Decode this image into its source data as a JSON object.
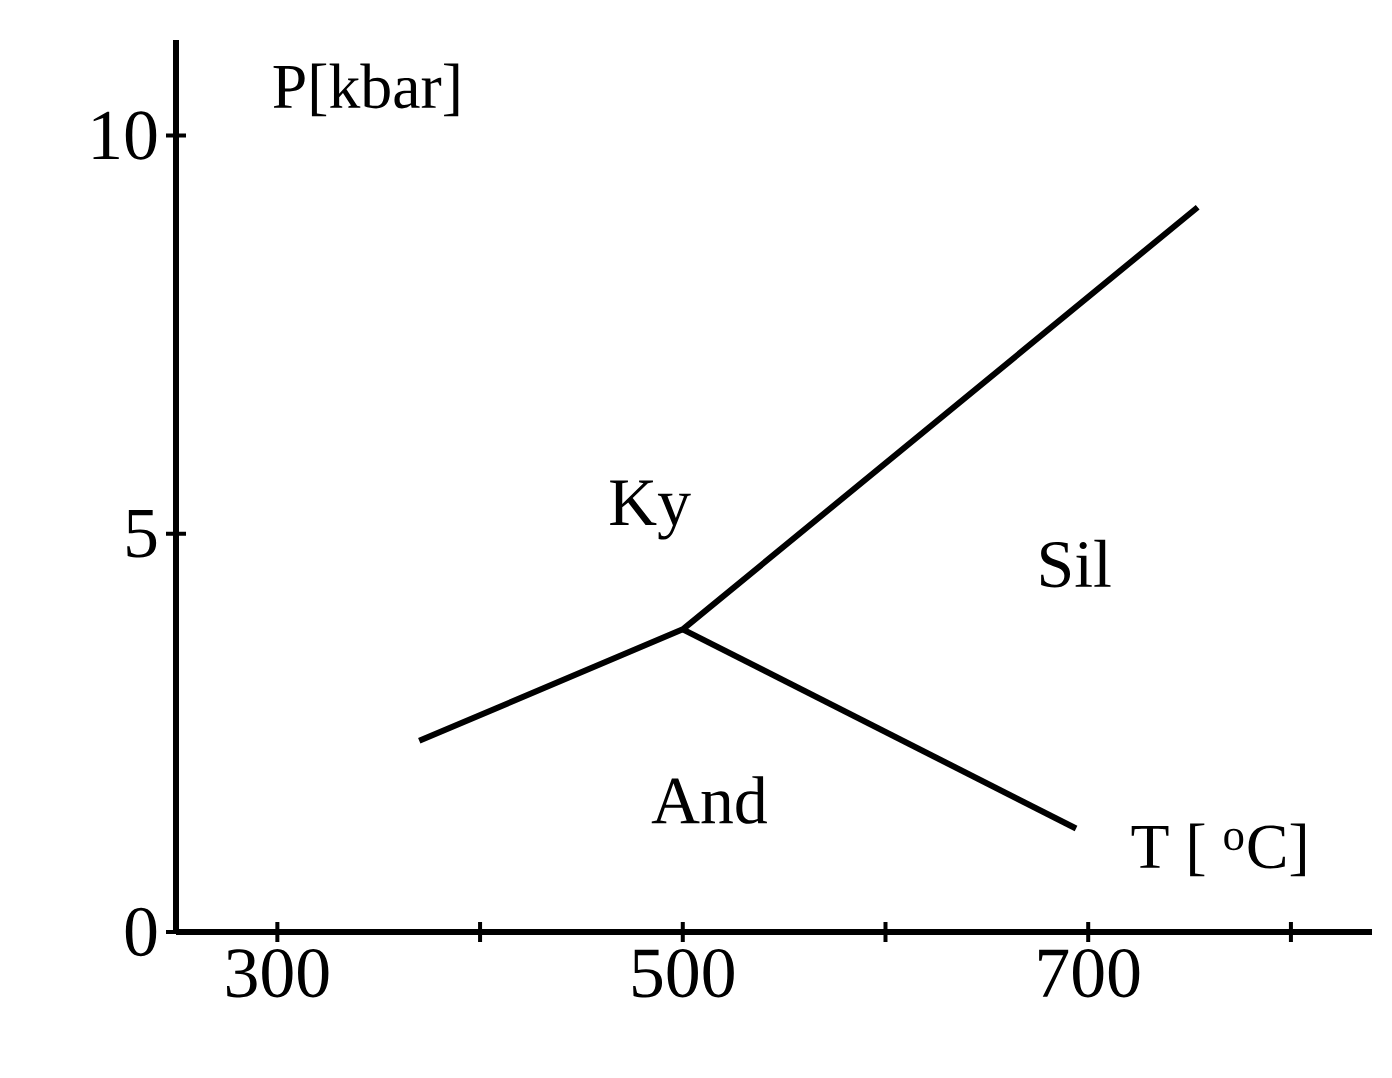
{
  "chart_data": {
    "type": "line",
    "xlabel": "T [ $^{o}$C]",
    "ylabel": "P[kbar]",
    "series": [
      {
        "color": "#000000",
        "x": [
          370,
          500,
          754
        ],
        "values": [
          2.4,
          3.8,
          9.1
        ]
      },
      {
        "color": "#000000",
        "x": [
          500,
          694
        ],
        "values": [
          3.8,
          1.3
        ]
      }
    ],
    "annotations": [
      "Ky",
      "Sil",
      "And"
    ],
    "xlim": [
      250,
      840
    ],
    "ylim": [
      0,
      11.2
    ],
    "xticks": [
      300,
      {
        "value": 400,
        "label": null
      },
      500,
      {
        "value": 600,
        "label": null
      },
      700,
      {
        "value": 800,
        "label": null
      }
    ],
    "yticks": [
      0,
      5,
      10
    ]
  }
}
